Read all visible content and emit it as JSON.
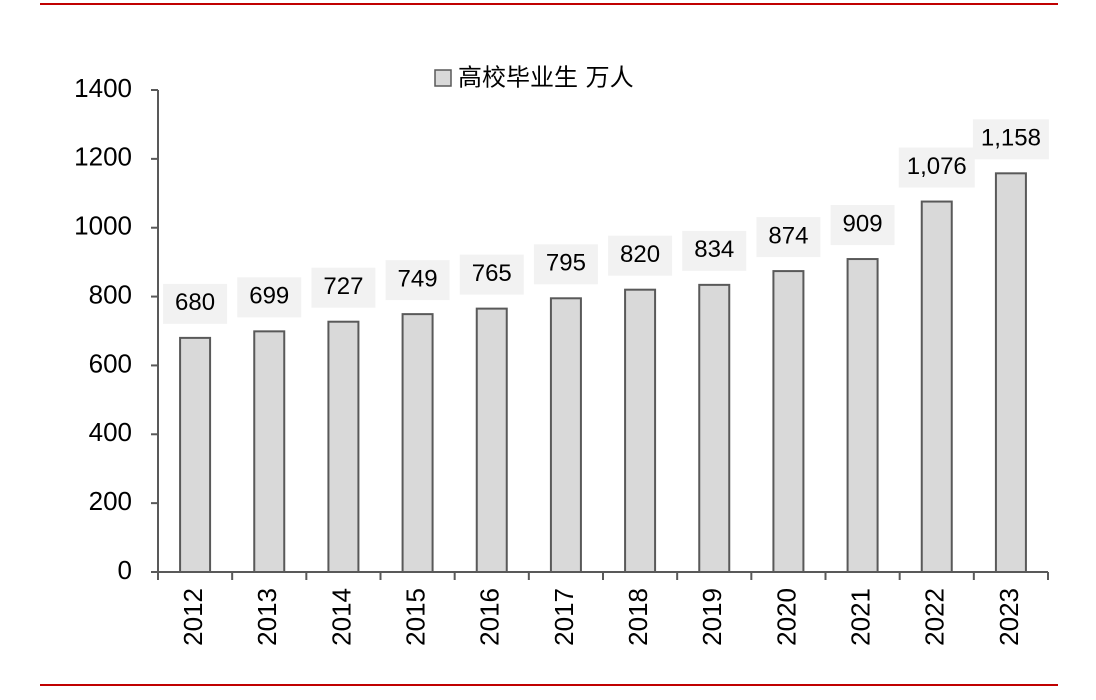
{
  "chart_data": {
    "type": "bar",
    "categories": [
      "2012",
      "2013",
      "2014",
      "2015",
      "2016",
      "2017",
      "2018",
      "2019",
      "2020",
      "2021",
      "2022",
      "2023"
    ],
    "series": [
      {
        "name": "高校毕业生 万人",
        "color": "#d9d9d9",
        "values": [
          680,
          699,
          727,
          749,
          765,
          795,
          820,
          834,
          874,
          909,
          1076,
          1158
        ],
        "value_labels": [
          "680",
          "699",
          "727",
          "749",
          "765",
          "795",
          "820",
          "834",
          "874",
          "909",
          "1,076",
          "1,158"
        ]
      }
    ],
    "ylim": [
      0,
      1400
    ],
    "yticks": [
      0,
      200,
      400,
      600,
      800,
      1000,
      1200,
      1400
    ],
    "grid": false
  }
}
